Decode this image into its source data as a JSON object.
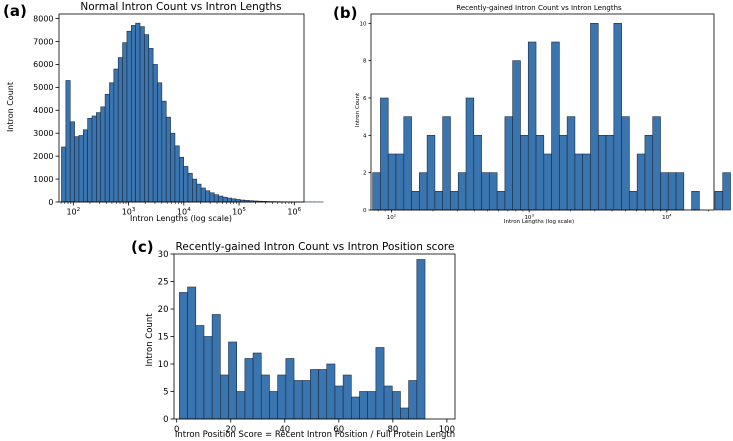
{
  "chart_data": [
    {
      "panel_label": "(a)",
      "type": "bar",
      "title": "Normal Intron Count vs Intron Lengths",
      "xlabel": "Intron Lengths (log scale)",
      "ylabel": "Intron Count",
      "x_scale": "log",
      "xlim": [
        55,
        1500000
      ],
      "ylim": [
        0,
        8200
      ],
      "x_ticks": [
        {
          "value": 100,
          "base": "10",
          "exp": "2"
        },
        {
          "value": 1000,
          "base": "10",
          "exp": "3"
        },
        {
          "value": 10000,
          "base": "10",
          "exp": "4"
        },
        {
          "value": 100000,
          "base": "10",
          "exp": "5"
        },
        {
          "value": 1000000,
          "base": "10",
          "exp": "6"
        }
      ],
      "y_ticks": [
        0,
        1000,
        2000,
        3000,
        4000,
        5000,
        6000,
        7000,
        8000
      ],
      "bin_start": 61,
      "bin_log_width": 0.079,
      "values": [
        2400,
        5300,
        3500,
        2850,
        2900,
        3150,
        3650,
        3750,
        3900,
        4150,
        4700,
        5200,
        5800,
        6300,
        6950,
        7450,
        7700,
        7800,
        7650,
        7300,
        6700,
        6000,
        5200,
        4400,
        3700,
        3000,
        2450,
        1950,
        1550,
        1250,
        1000,
        780,
        610,
        490,
        400,
        320,
        260,
        210,
        170,
        140,
        110,
        85,
        70,
        55,
        45,
        35,
        28,
        22,
        18,
        14,
        11,
        9,
        7,
        5,
        4,
        3,
        2,
        2,
        1,
        1
      ]
    },
    {
      "panel_label": "(b)",
      "type": "bar",
      "title": "Recently-gained Intron Count vs Intron Lengths",
      "xlabel": "Intron Lengths (log scale)",
      "ylabel": "Intron Count",
      "x_scale": "log",
      "xlim": [
        71,
        22000
      ],
      "ylim": [
        0,
        10.5
      ],
      "x_ticks": [
        {
          "value": 100,
          "base": "10",
          "exp": "2"
        },
        {
          "value": 1000,
          "base": "10",
          "exp": "3"
        },
        {
          "value": 10000,
          "base": "10",
          "exp": "4"
        }
      ],
      "y_ticks": [
        0,
        2,
        4,
        6,
        8,
        10
      ],
      "bin_start": 73,
      "bin_log_width": 0.0565,
      "values": [
        2,
        6,
        3,
        3,
        5,
        1,
        2,
        4,
        1,
        5,
        1,
        2,
        6,
        4,
        2,
        2,
        1,
        5,
        8,
        4,
        9,
        4,
        3,
        9,
        4,
        5,
        3,
        3,
        10,
        4,
        4,
        10,
        5,
        1,
        3,
        4,
        5,
        2,
        2,
        2,
        0,
        1,
        0,
        0,
        1,
        2
      ]
    },
    {
      "panel_label": "(c)",
      "type": "bar",
      "title": "Recently-gained Intron Count vs Intron Position score",
      "xlabel": "Intron Position Score = Recent Intron Position / Full Protein Length",
      "ylabel": "Intron Count",
      "xlim": [
        -1,
        103
      ],
      "ylim": [
        0,
        30
      ],
      "x_ticks": [
        0,
        20,
        40,
        60,
        80,
        100
      ],
      "y_ticks": [
        0,
        5,
        10,
        15,
        20,
        25,
        30
      ],
      "bin_start": 1,
      "bin_width": 3.03,
      "values": [
        23,
        24,
        17,
        15,
        19,
        8,
        14,
        5,
        11,
        12,
        8,
        5,
        8,
        11,
        7,
        7,
        9,
        9,
        10,
        6,
        8,
        4,
        5,
        5,
        13,
        6,
        5,
        2,
        7,
        29
      ]
    }
  ]
}
